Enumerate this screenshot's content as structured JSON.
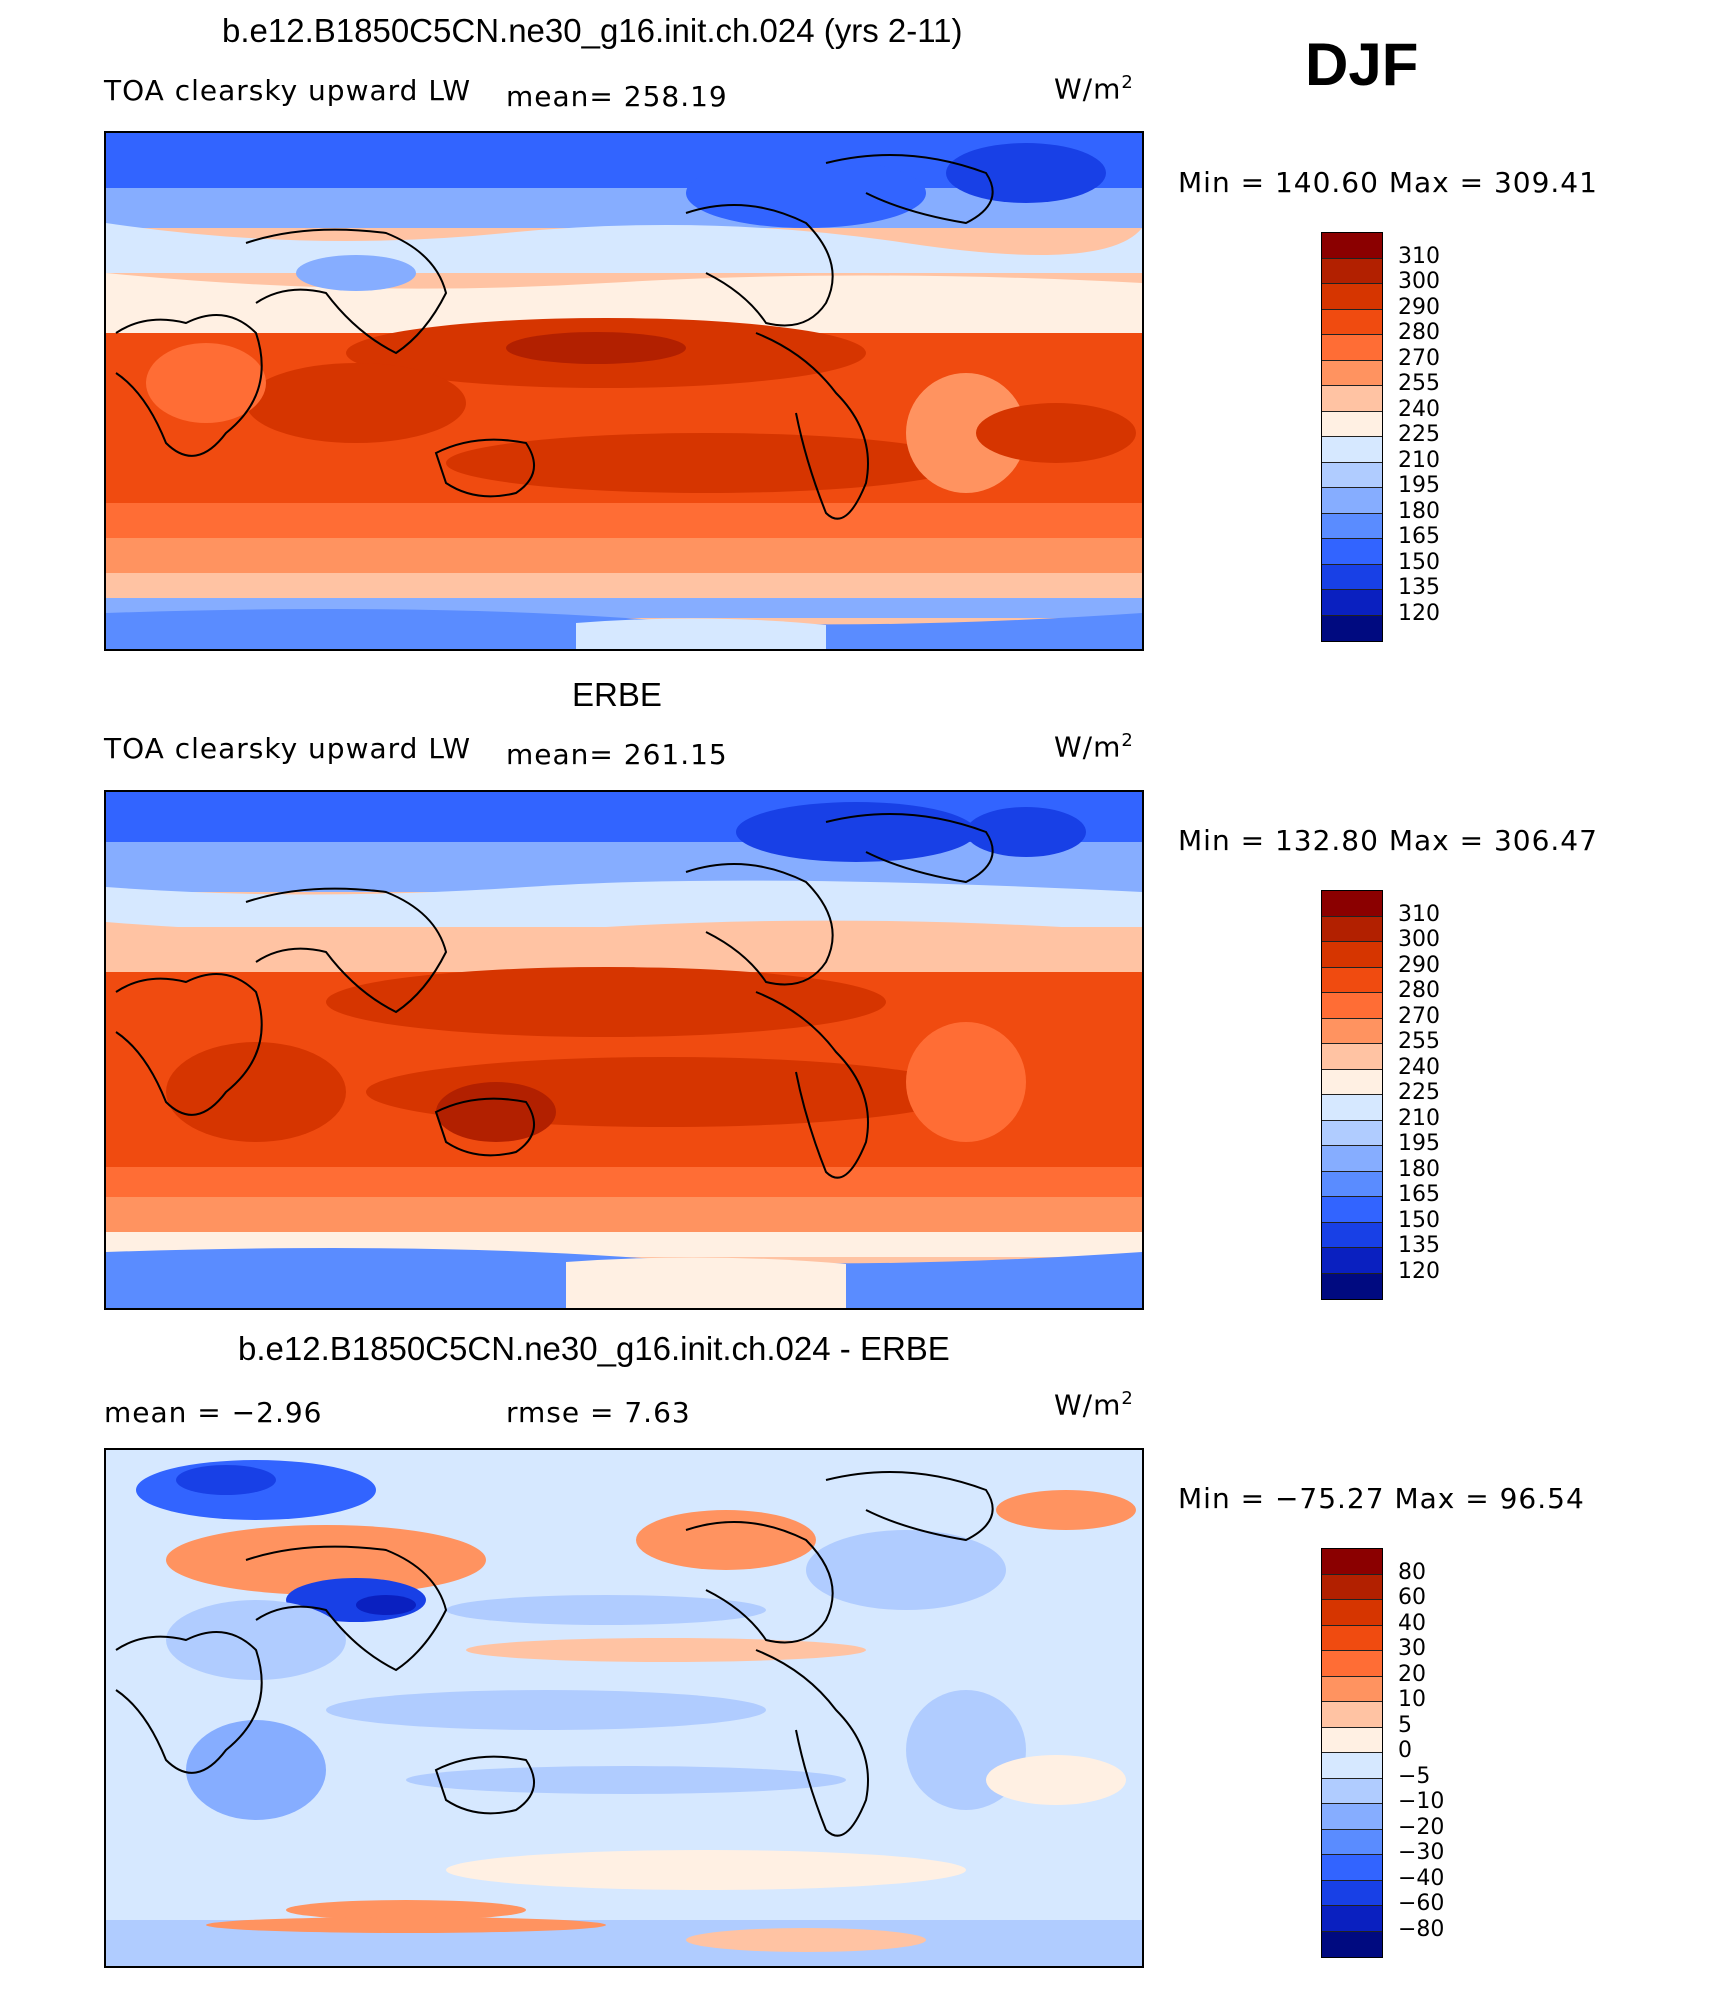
{
  "season": "DJF",
  "panels": [
    {
      "title": "b.e12.B1850C5CN.ne30_g16.init.ch.024 (yrs 2-11)",
      "left_label": "TOA clearsky upward LW",
      "stat_label": "mean=  258.19",
      "units": "W/m",
      "units_sup": "2",
      "minmax": "Min  =  140.60  Max  =  309.41",
      "colorbar": {
        "labels": [
          "310",
          "300",
          "290",
          "280",
          "270",
          "255",
          "240",
          "225",
          "210",
          "195",
          "180",
          "165",
          "150",
          "135",
          "120"
        ],
        "colors": [
          "#8b0000",
          "#b22000",
          "#d63500",
          "#f04b10",
          "#ff6d35",
          "#ff9360",
          "#ffc3a3",
          "#fff0e3",
          "#d6e8ff",
          "#b0ccff",
          "#86adff",
          "#5a8cff",
          "#3264ff",
          "#1840e6",
          "#0a20c0",
          "#000a80"
        ]
      }
    },
    {
      "title": "ERBE",
      "left_label": "TOA clearsky upward LW",
      "stat_label": "mean=  261.15",
      "units": "W/m",
      "units_sup": "2",
      "minmax": "Min  =  132.80  Max  =  306.47",
      "colorbar": {
        "labels": [
          "310",
          "300",
          "290",
          "280",
          "270",
          "255",
          "240",
          "225",
          "210",
          "195",
          "180",
          "165",
          "150",
          "135",
          "120"
        ],
        "colors": [
          "#8b0000",
          "#b22000",
          "#d63500",
          "#f04b10",
          "#ff6d35",
          "#ff9360",
          "#ffc3a3",
          "#fff0e3",
          "#d6e8ff",
          "#b0ccff",
          "#86adff",
          "#5a8cff",
          "#3264ff",
          "#1840e6",
          "#0a20c0",
          "#000a80"
        ]
      }
    },
    {
      "title": "b.e12.B1850C5CN.ne30_g16.init.ch.024 - ERBE",
      "left_label": "mean  =    −2.96",
      "stat_label": "rmse  =     7.63",
      "units": "W/m",
      "units_sup": "2",
      "minmax": "Min  =  −75.27  Max  =    96.54",
      "colorbar": {
        "labels": [
          "80",
          "60",
          "40",
          "30",
          "20",
          "10",
          "5",
          "0",
          "−5",
          "−10",
          "−20",
          "−30",
          "−40",
          "−60",
          "−80"
        ],
        "colors": [
          "#8b0000",
          "#b22000",
          "#d63500",
          "#f04b10",
          "#ff6d35",
          "#ff9360",
          "#ffc3a3",
          "#fff0e3",
          "#d6e8ff",
          "#b0ccff",
          "#86adff",
          "#5a8cff",
          "#3264ff",
          "#1840e6",
          "#0a20c0",
          "#000a80"
        ]
      }
    }
  ]
}
